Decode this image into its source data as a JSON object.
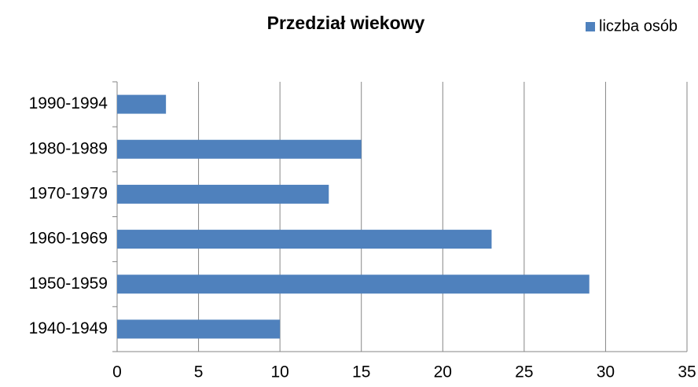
{
  "chart_data": {
    "type": "bar",
    "orientation": "horizontal",
    "title": "Przedział wiekowy",
    "categories": [
      "1940-1949",
      "1950-1959",
      "1960-1969",
      "1970-1979",
      "1980-1989",
      "1990-1994"
    ],
    "series": [
      {
        "name": "liczba osób",
        "color": "#4f81bd",
        "values": [
          10,
          29,
          23,
          13,
          15,
          3
        ]
      }
    ],
    "xlim": [
      0,
      35
    ],
    "xticks": [
      0,
      5,
      10,
      15,
      20,
      25,
      30,
      35
    ],
    "grid": true,
    "legend": "top-right"
  }
}
